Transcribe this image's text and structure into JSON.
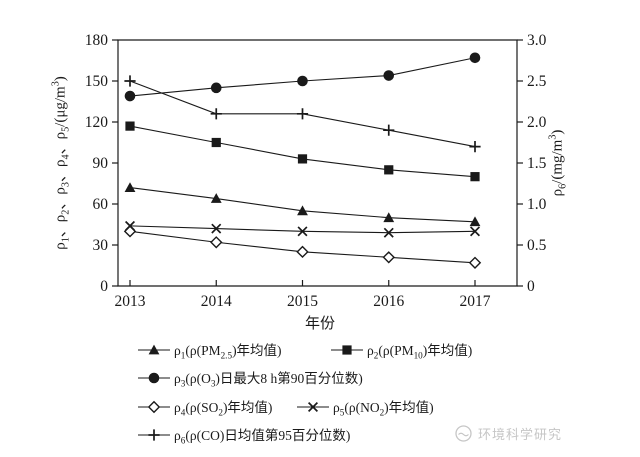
{
  "chart_data": {
    "type": "line",
    "x_categories": [
      "2013",
      "2014",
      "2015",
      "2016",
      "2017"
    ],
    "xlabel": "年份",
    "ylabel_left": "ρ1、ρ2、ρ3、ρ4、ρ5/(μg/m3)",
    "ylabel_left_html": "ρ<sub>1</sub>、ρ<sub>2</sub>、ρ<sub>3</sub>、ρ<sub>4</sub>、ρ<sub>5</sub>/(μg/m<sup>3</sup>)",
    "ylabel_right": "ρ6/(mg/m3)",
    "ylabel_right_html": "ρ<sub>6</sub>/(mg/m<sup>3</sup>)",
    "left_axis": {
      "min": 0,
      "max": 180,
      "step": 30,
      "ticks": [
        "0",
        "30",
        "60",
        "90",
        "120",
        "150",
        "180"
      ]
    },
    "right_axis": {
      "min": 0,
      "max": 3.0,
      "step": 0.5,
      "ticks": [
        "0",
        "0.5",
        "1.0",
        "1.5",
        "2.0",
        "2.5",
        "3.0"
      ]
    },
    "grid": false,
    "legend_position": "bottom",
    "series": [
      {
        "id": "rho1",
        "name": "ρ1 ρ(PM2.5)年均值",
        "marker": "triangle-filled",
        "axis": "left",
        "values": [
          72,
          64,
          55,
          50,
          47
        ]
      },
      {
        "id": "rho2",
        "name": "ρ2 ρ(PM10)年均值",
        "marker": "square-filled",
        "axis": "left",
        "values": [
          117,
          105,
          93,
          85,
          80
        ]
      },
      {
        "id": "rho3",
        "name": "ρ3 ρ(O3)日最大8 h第90百分位数",
        "marker": "circle-filled",
        "axis": "left",
        "values": [
          139,
          145,
          150,
          154,
          167
        ]
      },
      {
        "id": "rho4",
        "name": "ρ4 ρ(SO2)年均值",
        "marker": "diamond-open",
        "axis": "left",
        "values": [
          40,
          32,
          25,
          21,
          17
        ]
      },
      {
        "id": "rho5",
        "name": "ρ5 ρ(NO2)年均值",
        "marker": "x-cross",
        "axis": "left",
        "values": [
          44,
          42,
          40,
          39,
          40
        ]
      },
      {
        "id": "rho6",
        "name": "ρ6 ρ(CO)日均值第95百分位数",
        "marker": "plus",
        "axis": "right",
        "values": [
          2.5,
          2.1,
          2.1,
          1.9,
          1.7
        ]
      }
    ]
  },
  "legend": {
    "items": [
      {
        "marker": "triangle-filled",
        "label_html": "ρ<sub>1</sub>(ρ(PM<sub>2.5</sub>)年均值)"
      },
      {
        "marker": "square-filled",
        "label_html": "ρ<sub>2</sub>(ρ(PM<sub>10</sub>)年均值)"
      },
      {
        "marker": "circle-filled",
        "label_html": "ρ<sub>3</sub>(ρ(O<sub>3</sub>)日最大8 h第90百分位数)"
      },
      {
        "marker": "diamond-open",
        "label_html": "ρ<sub>4</sub>(ρ(SO<sub>2</sub>)年均值)"
      },
      {
        "marker": "x-cross",
        "label_html": "ρ<sub>5</sub>(ρ(NO<sub>2</sub>)年均值)"
      },
      {
        "marker": "plus",
        "label_html": "ρ<sub>6</sub>(ρ(CO)日均值第95百分位数)"
      }
    ]
  },
  "watermark": {
    "text": "环境科学研究"
  },
  "colors": {
    "line": "#1a1a1a",
    "text": "#1a1a1a",
    "watermark": "#c6c6c6",
    "background": "#ffffff"
  }
}
